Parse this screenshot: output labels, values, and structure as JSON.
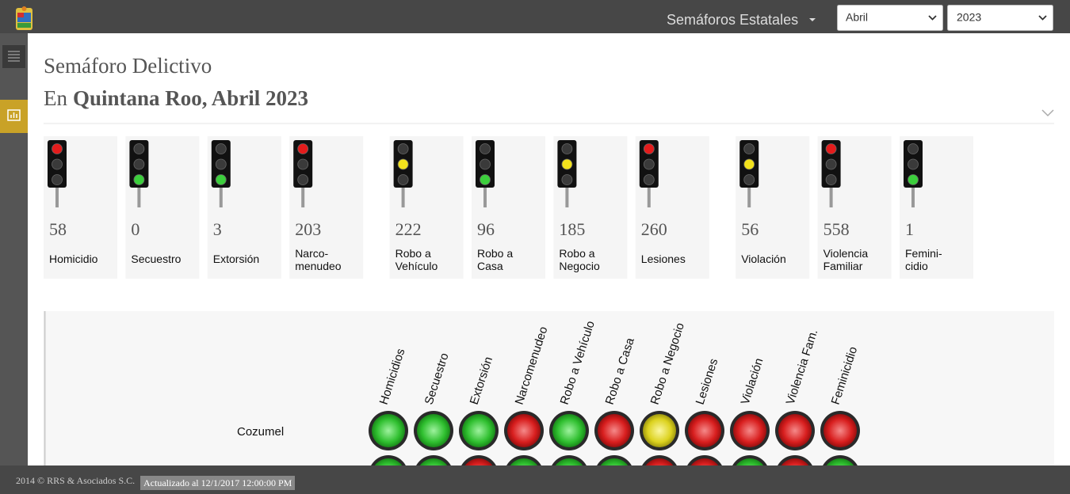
{
  "header": {
    "nav_menu": "Semáforos Estatales",
    "month_select": "Abril",
    "year_select": "2023"
  },
  "title": "Semáforo Delictivo",
  "subtitle": {
    "prefix": "En",
    "place": "Quintana Roo, Abril 2023"
  },
  "cards": [
    {
      "value": "58",
      "label": "Homicidio",
      "light": "red"
    },
    {
      "value": "0",
      "label": "Secuestro",
      "light": "green"
    },
    {
      "value": "3",
      "label": "Extorsión",
      "light": "green"
    },
    {
      "value": "203",
      "label": "Narco-\nmenudeo",
      "light": "red"
    },
    {
      "value": "222",
      "label": "Robo a\nVehículo",
      "light": "yellow"
    },
    {
      "value": "96",
      "label": "Robo a\nCasa",
      "light": "green"
    },
    {
      "value": "185",
      "label": "Robo a\nNegocio",
      "light": "yellow"
    },
    {
      "value": "260",
      "label": "Lesiones",
      "light": "red"
    },
    {
      "value": "56",
      "label": "Violación",
      "light": "yellow"
    },
    {
      "value": "558",
      "label": "Violencia\nFamiliar",
      "light": "red"
    },
    {
      "value": "1",
      "label": "Femini-\ncidio",
      "light": "green"
    }
  ],
  "matrix": {
    "columns": [
      "Homicidios",
      "Secuestro",
      "Extorsión",
      "Narcomenudeo",
      "Robo a Vehículo",
      "Robo a Casa",
      "Robo a Negocio",
      "Lesiones",
      "Violación",
      "Violencia Fam.",
      "Feminicidio"
    ],
    "rows": [
      {
        "name": "Cozumel",
        "lights": [
          "green",
          "green",
          "green",
          "red",
          "green",
          "red",
          "yellow",
          "red",
          "red",
          "red",
          "red"
        ]
      },
      {
        "lights": [
          "green",
          "green",
          "red",
          "green",
          "green",
          "green",
          "red",
          "red",
          "green",
          "red",
          "green"
        ]
      }
    ]
  },
  "footer": {
    "copyright": "2014 © RRS & Asociados S.C.",
    "updated": "Actualizado al 12/1/2017 12:00:00 PM"
  }
}
